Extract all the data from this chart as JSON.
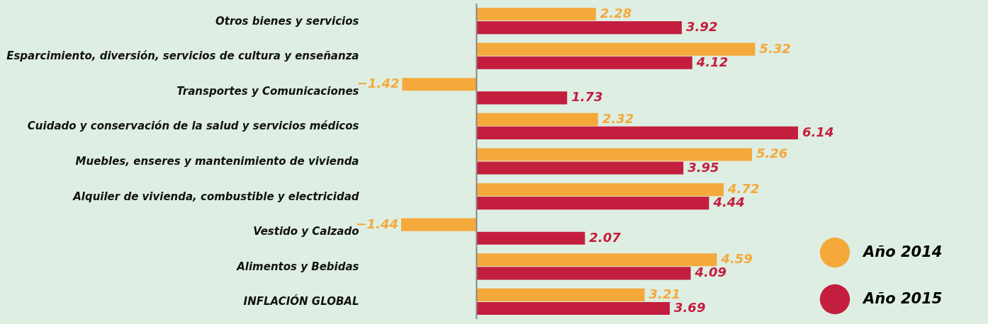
{
  "chart_data": {
    "type": "bar",
    "orientation": "horizontal",
    "categories": [
      "Otros bienes y servicios",
      "Esparcimiento, diversión, servicios de cultura y enseñanza",
      "Transportes y Comunicaciones",
      "Cuidado y conservación de la salud y servicios médicos",
      "Muebles, enseres y mantenimiento de vivienda",
      "Alquiler de vivienda, combustible y electricidad",
      "Vestido y Calzado",
      "Alimentos y Bebidas",
      "INFLACIÓN GLOBAL"
    ],
    "series": [
      {
        "name": "Año 2014",
        "color": "#f5a93b",
        "values": [
          2.28,
          5.32,
          -1.42,
          2.32,
          5.26,
          4.72,
          -1.44,
          4.59,
          3.21
        ]
      },
      {
        "name": "Año 2015",
        "color": "#c41e3f",
        "values": [
          3.92,
          4.12,
          1.73,
          6.14,
          3.95,
          4.44,
          2.07,
          4.09,
          3.69
        ]
      }
    ],
    "data_labels": true,
    "legend": "right",
    "grid": false,
    "tick_labels": "y"
  }
}
